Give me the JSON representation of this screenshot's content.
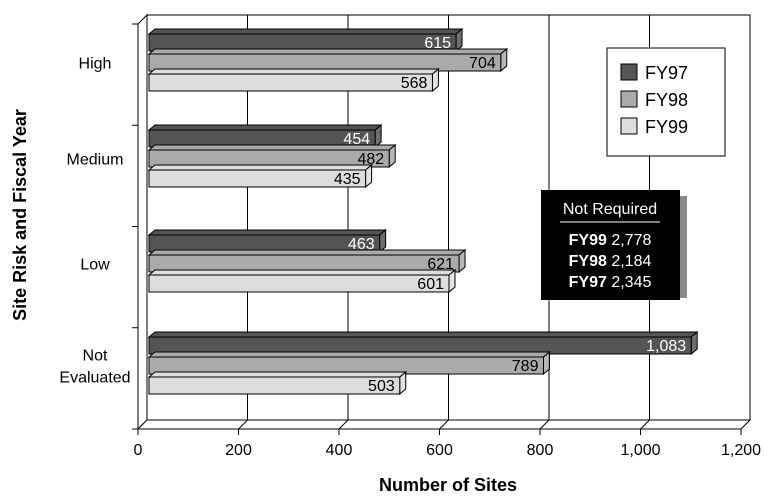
{
  "chart_data": {
    "type": "bar",
    "orientation": "horizontal",
    "style": "3d",
    "title": "",
    "xlabel": "Number of Sites",
    "ylabel": "Site Risk and Fiscal Year",
    "categories": [
      "High",
      "Medium",
      "Low",
      "Not Evaluated"
    ],
    "category_lines": [
      [
        "High"
      ],
      [
        "Medium"
      ],
      [
        "Low"
      ],
      [
        "Not",
        "Evaluated"
      ]
    ],
    "series": [
      {
        "name": "FY97",
        "color": "#555555",
        "label_color": "#ffffff",
        "values": [
          615,
          454,
          463,
          1083
        ]
      },
      {
        "name": "FY98",
        "color": "#aaaaaa",
        "label_color": "#000000",
        "values": [
          704,
          482,
          621,
          789
        ]
      },
      {
        "name": "FY99",
        "color": "#dddddd",
        "label_color": "#000000",
        "values": [
          568,
          435,
          601,
          503
        ]
      }
    ],
    "xlim": [
      0,
      1200
    ],
    "xticks": [
      0,
      200,
      400,
      600,
      800,
      1000,
      1200
    ],
    "xtick_labels": [
      "0",
      "200",
      "400",
      "600",
      "800",
      "1,000",
      "1,200"
    ],
    "grid": "vertical",
    "legend_position": "top-right",
    "inset_box": {
      "title": "Not Required",
      "rows": [
        {
          "label": "FY99",
          "value": "2,778"
        },
        {
          "label": "FY98",
          "value": "2,184"
        },
        {
          "label": "FY97",
          "value": "2,345"
        }
      ]
    }
  }
}
